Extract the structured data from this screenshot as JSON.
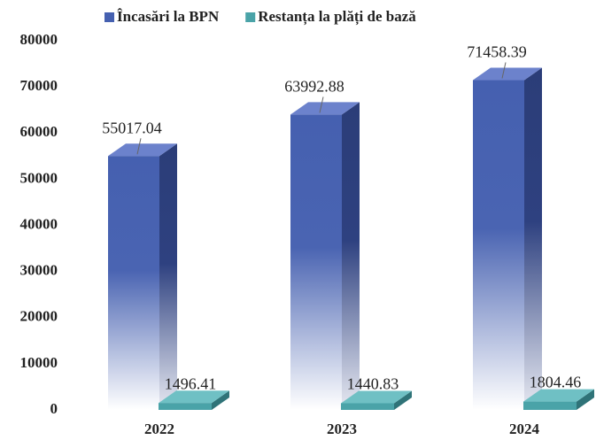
{
  "chart_data": {
    "type": "bar3d",
    "categories": [
      "2022",
      "2023",
      "2024"
    ],
    "series": [
      {
        "name": "Încasări la BPN",
        "color": "#4560b0",
        "values": [
          55017.04,
          63992.88,
          71458.39
        ]
      },
      {
        "name": "Restanța la plăți de bază",
        "color": "#4aa3a8",
        "values": [
          1496.41,
          1440.83,
          1804.46
        ]
      }
    ],
    "ylim": [
      0,
      80000
    ],
    "yticks": [
      0,
      10000,
      20000,
      30000,
      40000,
      50000,
      60000,
      70000,
      80000
    ],
    "legend": "top"
  }
}
